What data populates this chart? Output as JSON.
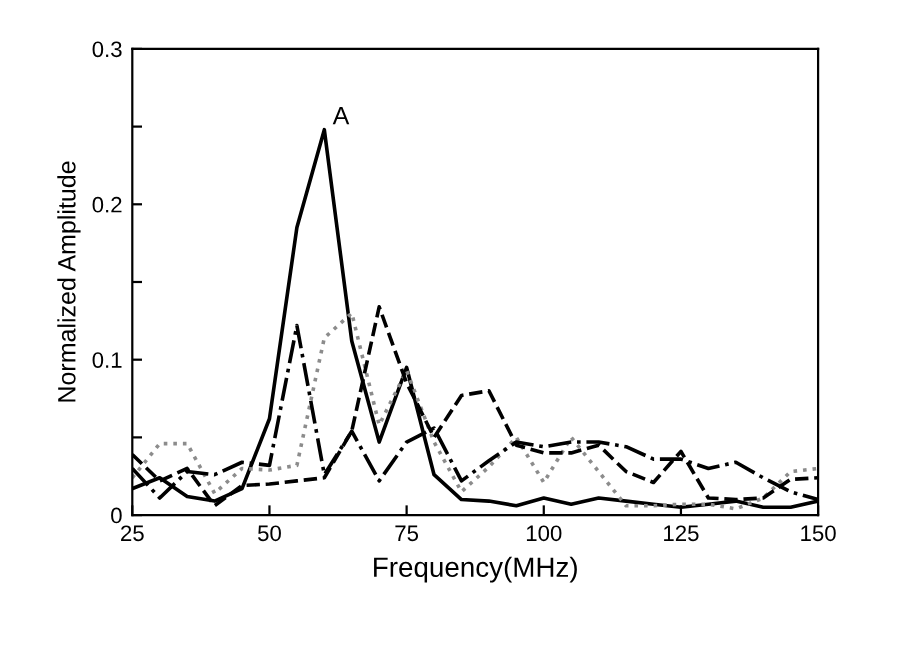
{
  "chart_data": {
    "type": "line",
    "xlabel": "Frequency(MHz)",
    "ylabel": "Normalized Amplitude",
    "x": [
      25,
      30,
      35,
      40,
      45,
      50,
      55,
      60,
      65,
      70,
      75,
      80,
      85,
      90,
      95,
      100,
      105,
      110,
      115,
      120,
      125,
      130,
      135,
      140,
      145,
      150
    ],
    "series": [
      {
        "color": "#000000",
        "line_style": "solid",
        "values": [
          0.017,
          0.024,
          0.012,
          0.009,
          0.017,
          0.062,
          0.185,
          0.248,
          0.112,
          0.047,
          0.095,
          0.026,
          0.01,
          0.009,
          0.006,
          0.011,
          0.007,
          0.011,
          0.009,
          0.007,
          0.005,
          0.007,
          0.009,
          0.005,
          0.005,
          0.009
        ]
      },
      {
        "color": "#8c8c8c",
        "line_style": "dotted",
        "values": [
          0.024,
          0.046,
          0.046,
          0.014,
          0.03,
          0.029,
          0.032,
          0.114,
          0.13,
          0.058,
          0.093,
          0.047,
          0.015,
          0.031,
          0.05,
          0.021,
          0.05,
          0.028,
          0.006,
          0.006,
          0.007,
          0.007,
          0.004,
          0.011,
          0.028,
          0.03
        ]
      },
      {
        "color": "#000000",
        "line_style": "dashed",
        "values": [
          0.039,
          0.022,
          0.03,
          0.006,
          0.019,
          0.02,
          0.022,
          0.024,
          0.054,
          0.134,
          0.085,
          0.05,
          0.077,
          0.08,
          0.045,
          0.04,
          0.04,
          0.045,
          0.028,
          0.021,
          0.041,
          0.011,
          0.01,
          0.011,
          0.023,
          0.024
        ]
      },
      {
        "color": "#000000",
        "line_style": "dashdot",
        "values": [
          0.03,
          0.011,
          0.028,
          0.026,
          0.034,
          0.032,
          0.122,
          0.026,
          0.054,
          0.022,
          0.047,
          0.056,
          0.022,
          0.035,
          0.047,
          0.044,
          0.047,
          0.047,
          0.044,
          0.036,
          0.036,
          0.03,
          0.034,
          0.024,
          0.015,
          0.01
        ]
      }
    ],
    "xlim": [
      25,
      150
    ],
    "xticks": [
      25,
      50,
      75,
      100,
      125,
      150
    ],
    "ylim": [
      0,
      0.3
    ],
    "yticks": [
      0,
      {
        "value": 0.05,
        "label": null
      },
      0.1,
      {
        "value": 0.15,
        "label": null
      },
      0.2,
      {
        "value": 0.25,
        "label": null
      },
      0.3
    ],
    "annotations": [
      {
        "text": "A",
        "x": 60,
        "y": 0.248
      }
    ],
    "grid": false,
    "legend": false
  }
}
